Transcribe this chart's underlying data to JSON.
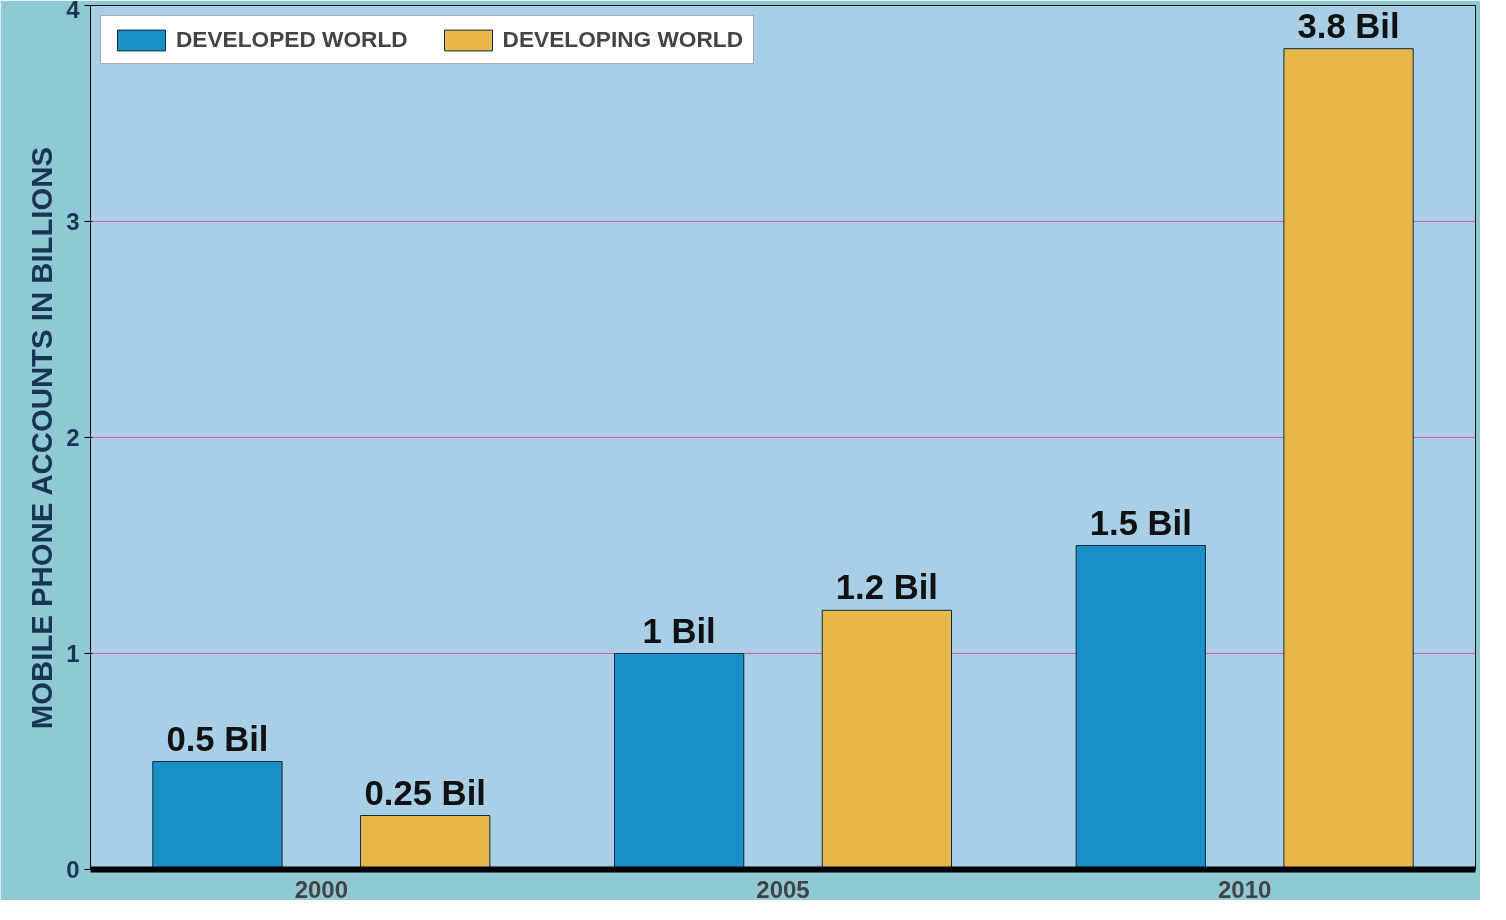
{
  "chart_data": {
    "type": "bar",
    "ylabel": "MOBILE PHONE ACCOUNTS IN BILLIONS",
    "categories": [
      "2000",
      "2005",
      "2010"
    ],
    "series": [
      {
        "name": "DEVELOPED WORLD",
        "color": "#1a8fc8",
        "values": [
          0.5,
          1,
          1.5
        ],
        "value_labels": [
          "0.5 Bil",
          "1 Bil",
          "1.5 Bil"
        ]
      },
      {
        "name": "DEVELOPING WORLD",
        "color": "#e8b84a",
        "values": [
          0.25,
          1.2,
          3.8
        ],
        "value_labels": [
          "0.25 Bil",
          "1.2 Bil",
          "3.8 Bil"
        ]
      }
    ],
    "ylim": [
      0,
      4
    ],
    "yticks": [
      0,
      1,
      2,
      3,
      4
    ],
    "grid": "y",
    "legend": "top left"
  }
}
